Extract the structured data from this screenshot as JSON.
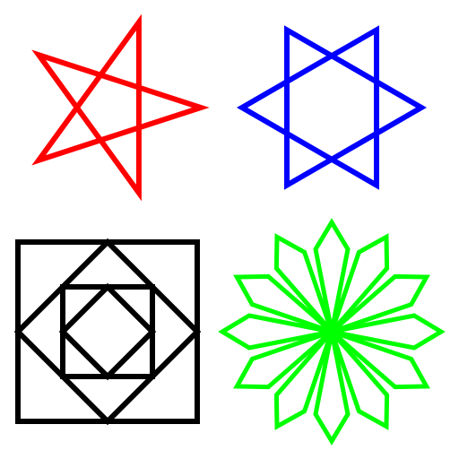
{
  "figures": [
    {
      "id": "pentagram",
      "kind": "star",
      "points": 5,
      "skip": 2,
      "color": "#ff0000"
    },
    {
      "id": "hexagram",
      "kind": "star",
      "points": 6,
      "skip": 2,
      "color": "#0000ff"
    },
    {
      "id": "nested-squares",
      "kind": "nested-squares",
      "levels": 4,
      "color": "#000000"
    },
    {
      "id": "kite-rosette",
      "kind": "rosette",
      "petals": 12,
      "color": "#00ff00"
    }
  ]
}
